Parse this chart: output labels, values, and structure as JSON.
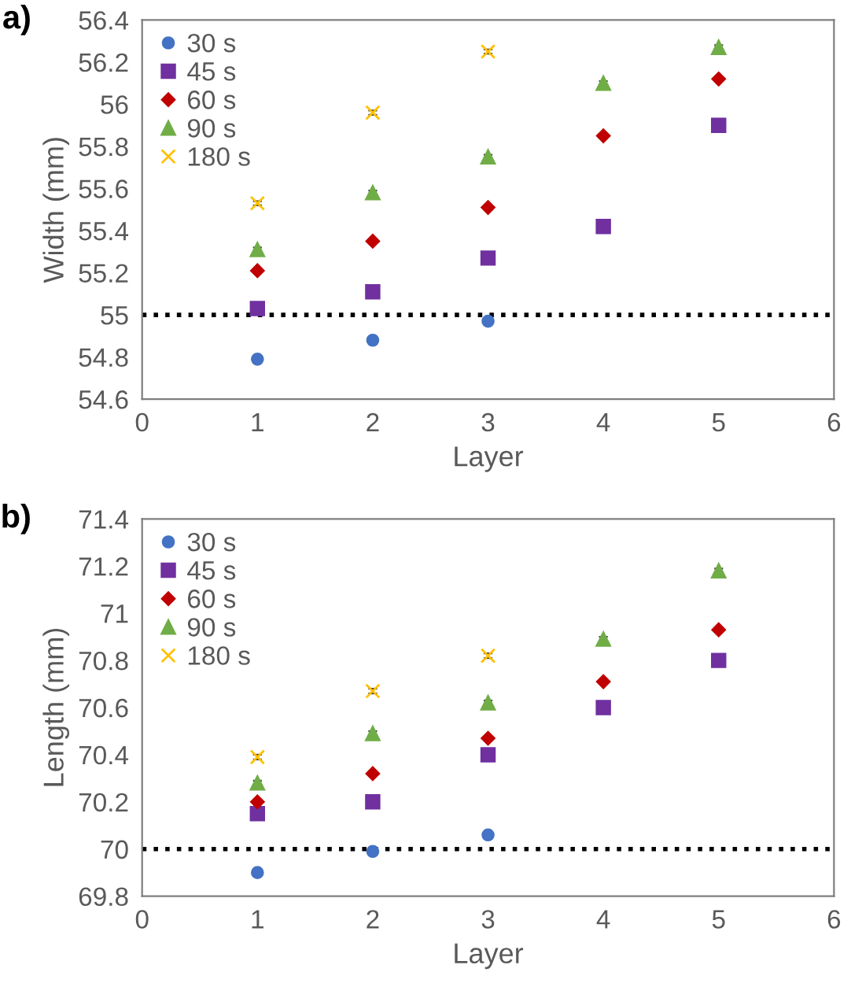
{
  "chart_data": [
    {
      "type": "scatter",
      "title": "a)",
      "xlabel": "Layer",
      "ylabel": "Width (mm)",
      "xlim": [
        0,
        6
      ],
      "xticks": [
        0,
        1,
        2,
        3,
        4,
        5,
        6
      ],
      "ylim": [
        54.6,
        56.4
      ],
      "yticks": [
        54.6,
        54.8,
        55,
        55.2,
        55.4,
        55.6,
        55.8,
        56,
        56.2,
        56.4
      ],
      "grid": false,
      "legend": "top left",
      "ref_lines": [
        {
          "axis": "y",
          "value": 55,
          "color": "#000000",
          "line_style": "dotted"
        }
      ],
      "series": [
        {
          "name": "30 s",
          "color": "#4472c4",
          "marker": "circle",
          "x": [
            1,
            2,
            3
          ],
          "values": [
            54.79,
            54.88,
            54.97
          ],
          "errors": [
            0.01,
            0.01,
            0.01
          ]
        },
        {
          "name": "45 s",
          "color": "#7030a0",
          "marker": "square",
          "x": [
            1,
            2,
            3,
            4,
            5
          ],
          "values": [
            55.03,
            55.11,
            55.27,
            55.42,
            55.9
          ],
          "errors": [
            0.01,
            0.01,
            0.01,
            0.01,
            0.01
          ]
        },
        {
          "name": "60 s",
          "color": "#c00000",
          "marker": "diamond",
          "x": [
            1,
            2,
            3,
            4,
            5
          ],
          "values": [
            55.21,
            55.35,
            55.51,
            55.85,
            56.12
          ],
          "errors": [
            0.01,
            0.01,
            0.01,
            0.01,
            0.01
          ]
        },
        {
          "name": "90 s",
          "color": "#70ad47",
          "marker": "triangle",
          "x": [
            1,
            2,
            3,
            4,
            5
          ],
          "values": [
            55.31,
            55.58,
            55.75,
            56.1,
            56.27
          ],
          "errors": [
            0.01,
            0.01,
            0.01,
            0.01,
            0.01
          ]
        },
        {
          "name": "180 s",
          "color": "#ffc000",
          "marker": "cross",
          "x": [
            1,
            2,
            3
          ],
          "values": [
            55.53,
            55.96,
            56.25
          ],
          "errors": [
            0.01,
            0.01,
            0.01
          ]
        }
      ]
    },
    {
      "type": "scatter",
      "title": "b)",
      "xlabel": "Layer",
      "ylabel": "Length (mm)",
      "xlim": [
        0,
        6
      ],
      "xticks": [
        0,
        1,
        2,
        3,
        4,
        5,
        6
      ],
      "ylim": [
        69.8,
        71.4
      ],
      "yticks": [
        69.8,
        70,
        70.2,
        70.4,
        70.6,
        70.8,
        71,
        71.2,
        71.4
      ],
      "grid": false,
      "legend": "top left",
      "ref_lines": [
        {
          "axis": "y",
          "value": 70,
          "color": "#000000",
          "line_style": "dotted"
        }
      ],
      "series": [
        {
          "name": "30 s",
          "color": "#4472c4",
          "marker": "circle",
          "x": [
            1,
            2,
            3
          ],
          "values": [
            69.9,
            69.99,
            70.06
          ],
          "errors": [
            0.01,
            0.01,
            0.01
          ]
        },
        {
          "name": "45 s",
          "color": "#7030a0",
          "marker": "square",
          "x": [
            1,
            2,
            3,
            4,
            5
          ],
          "values": [
            70.15,
            70.2,
            70.4,
            70.6,
            70.8
          ],
          "errors": [
            0.01,
            0.01,
            0.01,
            0.01,
            0.01
          ]
        },
        {
          "name": "60 s",
          "color": "#c00000",
          "marker": "diamond",
          "x": [
            1,
            2,
            3,
            4,
            5
          ],
          "values": [
            70.2,
            70.32,
            70.47,
            70.71,
            70.93
          ],
          "errors": [
            0.01,
            0.01,
            0.01,
            0.01,
            0.01
          ]
        },
        {
          "name": "90 s",
          "color": "#70ad47",
          "marker": "triangle",
          "x": [
            1,
            2,
            3,
            4,
            5
          ],
          "values": [
            70.28,
            70.49,
            70.62,
            70.89,
            71.18
          ],
          "errors": [
            0.01,
            0.01,
            0.01,
            0.01,
            0.01
          ]
        },
        {
          "name": "180 s",
          "color": "#ffc000",
          "marker": "cross",
          "x": [
            1,
            2,
            3
          ],
          "values": [
            70.39,
            70.67,
            70.82
          ],
          "errors": [
            0.01,
            0.01,
            0.01
          ]
        }
      ]
    }
  ]
}
